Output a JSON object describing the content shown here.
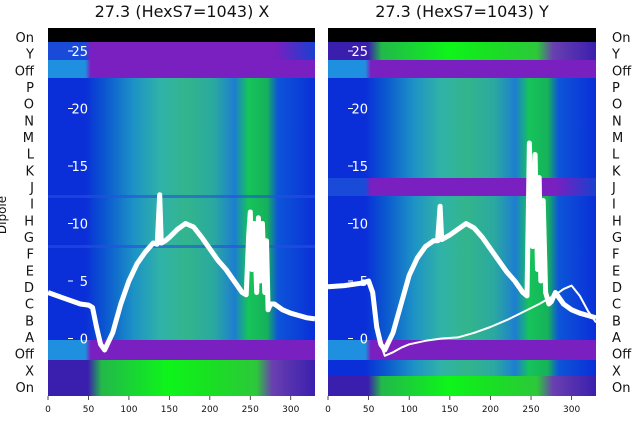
{
  "chart_data": [
    {
      "type": "heatmap",
      "title": "27.3 (HexS7=1043) X",
      "ylabel": "Dipole",
      "xlim": [
        0,
        330
      ],
      "ylim": [
        -5,
        27
      ],
      "x_ticks": [
        0,
        50,
        100,
        150,
        200,
        250,
        300
      ],
      "y_ticks": [
        0,
        5,
        10,
        15,
        20,
        25
      ],
      "dipole_labels": [
        "On",
        "Y",
        "Off",
        "P",
        "O",
        "N",
        "M",
        "L",
        "K",
        "J",
        "I",
        "H",
        "G",
        "F",
        "E",
        "D",
        "C",
        "B",
        "A",
        "Off",
        "X",
        "On"
      ],
      "series": [
        {
          "name": "",
          "x": [
            0,
            20,
            40,
            50,
            55,
            60,
            65,
            70,
            80,
            90,
            100,
            110,
            120,
            130,
            135,
            138,
            140,
            145,
            150,
            160,
            170,
            180,
            190,
            200,
            210,
            220,
            230,
            240,
            245,
            248,
            250,
            252,
            255,
            258,
            260,
            262,
            265,
            268,
            270,
            272,
            275,
            280,
            290,
            300,
            310,
            320,
            330
          ],
          "y": [
            4,
            3.5,
            3,
            2.9,
            2.7,
            1,
            -0.5,
            -1,
            0.5,
            3,
            5,
            6.5,
            7.5,
            8.3,
            8.2,
            12.5,
            8.3,
            8.5,
            8.8,
            9.5,
            10,
            9.7,
            8.8,
            7.8,
            6.8,
            6,
            5,
            4,
            3.8,
            9,
            11,
            6,
            10,
            4,
            10.5,
            5,
            10,
            4,
            8.5,
            2.5,
            3,
            3,
            2.5,
            2.2,
            2,
            1.8,
            1.7
          ]
        }
      ]
    },
    {
      "type": "heatmap",
      "title": "27.3 (HexS7=1043) Y",
      "ylabel": "",
      "xlim": [
        0,
        330
      ],
      "ylim": [
        -5,
        27
      ],
      "x_ticks": [
        0,
        50,
        100,
        150,
        200,
        250,
        300
      ],
      "y_ticks": [
        0,
        5,
        10,
        15,
        20,
        25
      ],
      "dipole_labels": [
        "On",
        "Y",
        "Off",
        "P",
        "O",
        "N",
        "M",
        "L",
        "K",
        "J",
        "I",
        "H",
        "G",
        "F",
        "E",
        "D",
        "C",
        "B",
        "A",
        "Off",
        "X",
        "On"
      ],
      "series": [
        {
          "name": "",
          "x": [
            0,
            20,
            40,
            50,
            55,
            60,
            65,
            70,
            80,
            90,
            100,
            110,
            120,
            130,
            135,
            138,
            140,
            145,
            150,
            160,
            170,
            180,
            190,
            200,
            210,
            220,
            230,
            240,
            245,
            248,
            250,
            252,
            255,
            258,
            260,
            262,
            265,
            268,
            270,
            272,
            275,
            280,
            290,
            300,
            310,
            320,
            330
          ],
          "y": [
            4.5,
            4.6,
            4.8,
            5,
            4,
            1,
            -0.5,
            -1,
            0.5,
            3,
            5.5,
            7,
            8,
            8.5,
            8.5,
            11.5,
            8.6,
            8.8,
            9,
            9.5,
            10,
            9.6,
            8.8,
            7.8,
            6.8,
            5.8,
            5,
            4,
            3.7,
            17,
            11,
            8,
            16,
            6,
            14,
            5,
            12,
            4,
            3.5,
            3,
            3.2,
            4,
            3,
            2.5,
            2.2,
            2,
            1.8
          ]
        },
        {
          "name": "",
          "x": [
            60,
            70,
            80,
            90,
            100,
            120,
            140,
            160,
            180,
            200,
            220,
            240,
            260,
            270,
            280,
            290,
            300,
            310,
            320,
            330
          ],
          "y": [
            0.5,
            -1.5,
            -1.2,
            -0.8,
            -0.5,
            -0.2,
            0,
            0.1,
            0.5,
            1,
            1.6,
            2.3,
            3,
            3.4,
            3.8,
            4.3,
            4.6,
            3.7,
            2.4,
            1.4
          ]
        }
      ]
    }
  ]
}
